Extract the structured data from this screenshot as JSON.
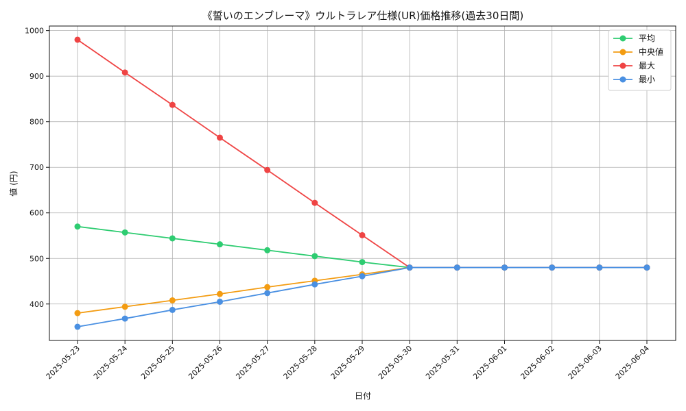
{
  "chart_data": {
    "type": "line",
    "title": "《誓いのエンブレーマ》ウルトラレア仕様(UR)価格推移(過去30日間)",
    "xlabel": "日付",
    "ylabel": "値 (円)",
    "categories": [
      "2025-05-23",
      "2025-05-24",
      "2025-05-25",
      "2025-05-26",
      "2025-05-27",
      "2025-05-28",
      "2025-05-29",
      "2025-05-30",
      "2025-05-31",
      "2025-06-01",
      "2025-06-02",
      "2025-06-03",
      "2025-06-04"
    ],
    "ylim": [
      320,
      1010
    ],
    "yticks": [
      400,
      500,
      600,
      700,
      800,
      900,
      1000
    ],
    "grid": true,
    "legend_position": "top-right",
    "series": [
      {
        "name": "平均",
        "color": "#2ecc71",
        "values": [
          570,
          557,
          544,
          531,
          518,
          505,
          492,
          480,
          480,
          480,
          480,
          480,
          480
        ]
      },
      {
        "name": "中央値",
        "color": "#f39c12",
        "values": [
          380,
          394,
          408,
          422,
          437,
          451,
          465,
          480,
          480,
          480,
          480,
          480,
          480
        ]
      },
      {
        "name": "最大",
        "color": "#ef4444",
        "values": [
          980,
          908,
          837,
          765,
          694,
          622,
          551,
          480,
          480,
          480,
          480,
          480,
          480
        ]
      },
      {
        "name": "最小",
        "color": "#4a90e2",
        "values": [
          350,
          368,
          387,
          405,
          424,
          443,
          461,
          480,
          480,
          480,
          480,
          480,
          480
        ]
      }
    ]
  }
}
